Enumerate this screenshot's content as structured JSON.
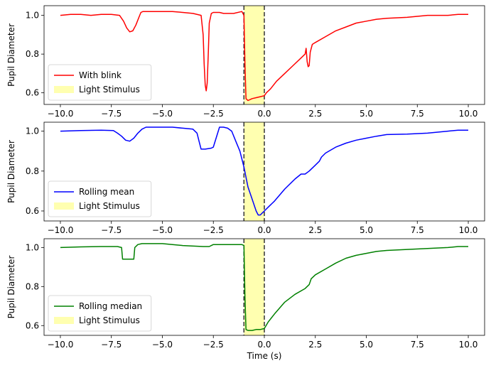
{
  "chart_data": [
    {
      "type": "line",
      "ylabel": "Pupil Diameter",
      "xlabel": "",
      "xlim": [
        -10.8,
        10.8
      ],
      "ylim": [
        0.54,
        1.05
      ],
      "xticks": [
        -10,
        -7.5,
        -5,
        -2.5,
        0,
        2.5,
        5,
        7.5,
        10
      ],
      "xtick_labels": [
        "−10.0",
        "−7.5",
        "−5.0",
        "−2.5",
        "0.0",
        "2.5",
        "5.0",
        "7.5",
        "10.0"
      ],
      "yticks": [
        0.6,
        0.8,
        1.0
      ],
      "ytick_labels": [
        "0.6",
        "0.8",
        "1.0"
      ],
      "stimulus": {
        "start": -1.0,
        "end": 0.0,
        "color": "#ffffb0",
        "line_color": "#333333"
      },
      "legend_position": "lower-left",
      "series": [
        {
          "name": "With blink",
          "color": "#ff0000",
          "x": [
            -10,
            -9.5,
            -9,
            -8.5,
            -8,
            -7.5,
            -7.1,
            -6.9,
            -6.75,
            -6.6,
            -6.45,
            -6.3,
            -6.15,
            -6.05,
            -5.95,
            -5.5,
            -5,
            -4.5,
            -4,
            -3.5,
            -3.1,
            -3.0,
            -2.95,
            -2.9,
            -2.85,
            -2.8,
            -2.75,
            -2.7,
            -2.6,
            -2.5,
            -2.2,
            -2.0,
            -1.5,
            -1.1,
            -1.0,
            -0.95,
            -0.9,
            -0.8,
            -0.6,
            -0.4,
            -0.2,
            0,
            0.1,
            0.3,
            0.6,
            1.0,
            1.4,
            1.8,
            2.0,
            2.05,
            2.1,
            2.15,
            2.2,
            2.25,
            2.35,
            2.5,
            3.0,
            3.5,
            4.0,
            4.5,
            5.0,
            5.5,
            6.0,
            7.0,
            8.0,
            9.0,
            9.5,
            10
          ],
          "y": [
            1.0,
            1.005,
            1.005,
            1.0,
            1.005,
            1.005,
            1.0,
            0.97,
            0.935,
            0.915,
            0.92,
            0.95,
            0.99,
            1.015,
            1.02,
            1.02,
            1.02,
            1.02,
            1.015,
            1.01,
            1.0,
            0.9,
            0.75,
            0.64,
            0.61,
            0.65,
            0.8,
            0.96,
            1.01,
            1.015,
            1.015,
            1.01,
            1.01,
            1.02,
            1.0,
            0.75,
            0.57,
            0.56,
            0.57,
            0.575,
            0.58,
            0.585,
            0.6,
            0.62,
            0.66,
            0.7,
            0.74,
            0.78,
            0.8,
            0.83,
            0.76,
            0.735,
            0.74,
            0.81,
            0.85,
            0.86,
            0.89,
            0.92,
            0.94,
            0.96,
            0.97,
            0.98,
            0.985,
            0.99,
            1.0,
            1.0,
            1.005,
            1.005
          ]
        }
      ]
    },
    {
      "type": "line",
      "ylabel": "Pupil Diameter",
      "xlabel": "",
      "xlim": [
        -10.8,
        10.8
      ],
      "ylim": [
        0.55,
        1.045
      ],
      "xticks": [
        -10,
        -7.5,
        -5,
        -2.5,
        0,
        2.5,
        5,
        7.5,
        10
      ],
      "xtick_labels": [
        "−10.0",
        "−7.5",
        "−5.0",
        "−2.5",
        "0.0",
        "2.5",
        "5.0",
        "7.5",
        "10.0"
      ],
      "yticks": [
        0.6,
        0.8,
        1.0
      ],
      "ytick_labels": [
        "0.6",
        "0.8",
        "1.0"
      ],
      "stimulus": {
        "start": -1.0,
        "end": 0.0,
        "color": "#ffffb0",
        "line_color": "#333333"
      },
      "legend_position": "lower-left",
      "series": [
        {
          "name": "Rolling mean",
          "color": "#0000ff",
          "x": [
            -10,
            -9,
            -8,
            -7.4,
            -7.2,
            -7.0,
            -6.8,
            -6.6,
            -6.4,
            -6.2,
            -6.0,
            -5.8,
            -5.5,
            -5.0,
            -4.5,
            -4.0,
            -3.5,
            -3.3,
            -3.2,
            -3.1,
            -3.0,
            -2.9,
            -2.6,
            -2.5,
            -2.2,
            -2.0,
            -1.8,
            -1.6,
            -1.4,
            -1.2,
            -1.0,
            -0.8,
            -0.6,
            -0.4,
            -0.3,
            -0.2,
            -0.1,
            0,
            0.2,
            0.5,
            1.0,
            1.5,
            1.8,
            2.0,
            2.2,
            2.5,
            2.7,
            2.8,
            3.0,
            3.5,
            4.0,
            4.5,
            5.0,
            5.5,
            6.0,
            7.0,
            8.0,
            9.0,
            9.5,
            10
          ],
          "y": [
            1.0,
            1.003,
            1.005,
            1.003,
            0.99,
            0.975,
            0.955,
            0.95,
            0.965,
            0.99,
            1.01,
            1.02,
            1.02,
            1.02,
            1.02,
            1.015,
            1.01,
            0.99,
            0.95,
            0.91,
            0.91,
            0.91,
            0.915,
            0.92,
            1.02,
            1.02,
            1.015,
            1.0,
            0.95,
            0.9,
            0.82,
            0.72,
            0.66,
            0.6,
            0.58,
            0.58,
            0.59,
            0.6,
            0.62,
            0.65,
            0.71,
            0.76,
            0.785,
            0.785,
            0.8,
            0.83,
            0.85,
            0.87,
            0.89,
            0.92,
            0.94,
            0.955,
            0.965,
            0.975,
            0.983,
            0.985,
            0.99,
            1.0,
            1.005,
            1.005
          ]
        }
      ]
    },
    {
      "type": "line",
      "ylabel": "Pupil Diameter",
      "xlabel": "Time (s)",
      "xlim": [
        -10.8,
        10.8
      ],
      "ylim": [
        0.55,
        1.045
      ],
      "xticks": [
        -10,
        -7.5,
        -5,
        -2.5,
        0,
        2.5,
        5,
        7.5,
        10
      ],
      "xtick_labels": [
        "−10.0",
        "−7.5",
        "−5.0",
        "−2.5",
        "0.0",
        "2.5",
        "5.0",
        "7.5",
        "10.0"
      ],
      "yticks": [
        0.6,
        0.8,
        1.0
      ],
      "ytick_labels": [
        "0.6",
        "0.8",
        "1.0"
      ],
      "stimulus": {
        "start": -1.0,
        "end": 0.0,
        "color": "#ffffb0",
        "line_color": "#333333"
      },
      "legend_position": "lower-left",
      "series": [
        {
          "name": "Rolling median",
          "color": "#008000",
          "x": [
            -10,
            -9,
            -8,
            -7.2,
            -7.0,
            -6.95,
            -6.4,
            -6.35,
            -6.2,
            -6.0,
            -5.5,
            -5.0,
            -4.5,
            -4.0,
            -3.0,
            -2.7,
            -2.6,
            -2.5,
            -2.0,
            -1.5,
            -1.1,
            -1.0,
            -0.95,
            -0.9,
            -0.8,
            -0.6,
            -0.4,
            -0.2,
            0,
            0.2,
            0.5,
            1.0,
            1.5,
            2.0,
            2.2,
            2.3,
            2.5,
            3.0,
            3.5,
            4.0,
            4.5,
            5.0,
            5.5,
            6.0,
            7.0,
            8.0,
            9.0,
            9.5,
            10
          ],
          "y": [
            1.0,
            1.003,
            1.005,
            1.005,
            1.0,
            0.94,
            0.94,
            1.0,
            1.015,
            1.02,
            1.02,
            1.02,
            1.015,
            1.01,
            1.005,
            1.005,
            1.01,
            1.015,
            1.015,
            1.015,
            1.015,
            1.01,
            0.75,
            0.58,
            0.575,
            0.575,
            0.58,
            0.58,
            0.585,
            0.62,
            0.66,
            0.72,
            0.76,
            0.79,
            0.81,
            0.84,
            0.86,
            0.89,
            0.92,
            0.945,
            0.96,
            0.97,
            0.98,
            0.985,
            0.99,
            0.995,
            1.0,
            1.005,
            1.005
          ]
        }
      ]
    }
  ],
  "legend": {
    "stimulus_label": "Light Stimulus"
  }
}
